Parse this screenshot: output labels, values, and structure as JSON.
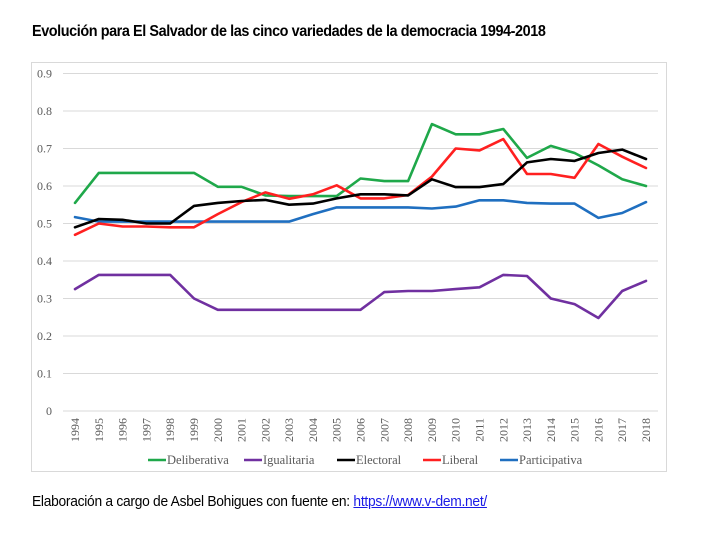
{
  "title": "Evolución para El Salvador de las cinco variedades de la democracia 1994-2018",
  "footer": {
    "text": "Elaboración a cargo de Asbel Bohigues con fuente en: ",
    "link_text": "https://www.v-dem.net/"
  },
  "chart_data": {
    "type": "line",
    "title": "Evolución para El Salvador de las cinco variedades de la democracia 1994-2018",
    "xlabel": "",
    "ylabel": "",
    "ylim": [
      0,
      0.9
    ],
    "grid": true,
    "legend_position": "bottom",
    "y_ticks": [
      "0",
      "0.1",
      "0.2",
      "0.3",
      "0.4",
      "0.5",
      "0.6",
      "0.7",
      "0.8",
      "0.9"
    ],
    "x": [
      "1994",
      "1995",
      "1996",
      "1997",
      "1998",
      "1999",
      "2000",
      "2001",
      "2002",
      "2003",
      "2004",
      "2005",
      "2006",
      "2007",
      "2008",
      "2009",
      "2010",
      "2011",
      "2012",
      "2013",
      "2014",
      "2015",
      "2016",
      "2017",
      "2018"
    ],
    "series": [
      {
        "name": "Deliberativa",
        "color": "#1fa84a",
        "values": [
          0.555,
          0.635,
          0.635,
          0.635,
          0.635,
          0.635,
          0.598,
          0.598,
          0.575,
          0.573,
          0.573,
          0.573,
          0.62,
          0.613,
          0.613,
          0.765,
          0.738,
          0.738,
          0.752,
          0.675,
          0.707,
          0.688,
          0.655,
          0.618,
          0.6
        ]
      },
      {
        "name": "Igualitaria",
        "color": "#7030a0",
        "values": [
          0.325,
          0.363,
          0.363,
          0.363,
          0.363,
          0.3,
          0.27,
          0.27,
          0.27,
          0.27,
          0.27,
          0.27,
          0.27,
          0.317,
          0.32,
          0.32,
          0.325,
          0.33,
          0.363,
          0.36,
          0.3,
          0.285,
          0.248,
          0.32,
          0.347
        ]
      },
      {
        "name": "Electoral",
        "color": "#000000",
        "values": [
          0.49,
          0.512,
          0.51,
          0.5,
          0.5,
          0.547,
          0.555,
          0.56,
          0.563,
          0.55,
          0.553,
          0.567,
          0.578,
          0.578,
          0.575,
          0.618,
          0.597,
          0.597,
          0.605,
          0.663,
          0.672,
          0.667,
          0.688,
          0.697,
          0.672
        ]
      },
      {
        "name": "Liberal",
        "color": "#ff2020",
        "values": [
          0.47,
          0.5,
          0.492,
          0.492,
          0.49,
          0.49,
          0.525,
          0.557,
          0.583,
          0.566,
          0.578,
          0.602,
          0.567,
          0.567,
          0.576,
          0.625,
          0.7,
          0.695,
          0.725,
          0.632,
          0.632,
          0.622,
          0.712,
          0.678,
          0.648
        ]
      },
      {
        "name": "Participativa",
        "color": "#1f6fc0",
        "values": [
          0.517,
          0.505,
          0.505,
          0.505,
          0.505,
          0.505,
          0.505,
          0.505,
          0.505,
          0.505,
          0.525,
          0.543,
          0.543,
          0.543,
          0.543,
          0.54,
          0.545,
          0.562,
          0.562,
          0.555,
          0.553,
          0.553,
          0.515,
          0.528,
          0.557
        ]
      }
    ]
  }
}
